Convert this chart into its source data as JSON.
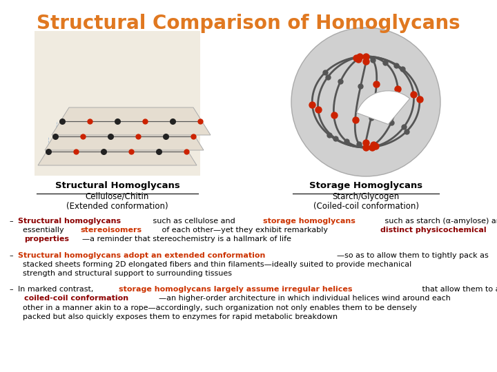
{
  "title": "Structural Comparison of Homoglycans",
  "title_color": "#E07820",
  "title_fontsize": 20,
  "left_label_bold": "Structural Homoglycans",
  "left_label_line1": "Cellulose/Chitin",
  "left_label_line2": "(Extended conformation)",
  "right_label_bold": "Storage Homoglycans",
  "right_label_line1": "Starch/Glycogen",
  "right_label_line2": "(Coiled-coil conformation)",
  "label_color": "#000000",
  "bullet1_lines": [
    [
      {
        "text": "Structural homoglycans",
        "color": "#8B0000",
        "bold": true
      },
      {
        "text": " such as cellulose and ",
        "color": "#000000",
        "bold": false
      },
      {
        "text": "storage homoglycans",
        "color": "#CC3300",
        "bold": true
      },
      {
        "text": " such as starch (α-amylose) are",
        "color": "#000000",
        "bold": false
      }
    ],
    [
      {
        "text": "  essentially ",
        "color": "#000000",
        "bold": false
      },
      {
        "text": "stereoisomers",
        "color": "#CC3300",
        "bold": true
      },
      {
        "text": " of each other—yet they exhibit remarkably ",
        "color": "#000000",
        "bold": false
      },
      {
        "text": "distinct physicochemical",
        "color": "#8B0000",
        "bold": true
      }
    ],
    [
      {
        "text": "  ",
        "color": "#000000",
        "bold": false
      },
      {
        "text": "properties",
        "color": "#8B0000",
        "bold": true
      },
      {
        "text": "—a reminder that stereochemistry is a hallmark of life",
        "color": "#000000",
        "bold": false
      }
    ]
  ],
  "bullet2_lines": [
    [
      {
        "text": "Structural homoglycans adopt an extended conformation",
        "color": "#CC3300",
        "bold": true
      },
      {
        "text": "—so as to allow them to tightly pack as",
        "color": "#000000",
        "bold": false
      }
    ],
    [
      {
        "text": "  stacked sheets forming 2D elongated fibers and thin filaments—ideally suited to provide mechanical",
        "color": "#000000",
        "bold": false
      }
    ],
    [
      {
        "text": "  strength and structural support to surrounding tissues",
        "color": "#000000",
        "bold": false
      }
    ]
  ],
  "bullet3_lines": [
    [
      {
        "text": "In marked contrast, ",
        "color": "#000000",
        "bold": false
      },
      {
        "text": "storage homoglycans largely assume irregular helices",
        "color": "#CC3300",
        "bold": true
      },
      {
        "text": " that allow them to adopt a",
        "color": "#000000",
        "bold": false
      }
    ],
    [
      {
        "text": "  ",
        "color": "#000000",
        "bold": false
      },
      {
        "text": "coiled-coil conformation",
        "color": "#8B0000",
        "bold": true
      },
      {
        "text": "—an higher-order architecture in which individual helices wind around each",
        "color": "#000000",
        "bold": false
      }
    ],
    [
      {
        "text": "  other in a manner akin to a rope—accordingly, such organization not only enables them to be densely",
        "color": "#000000",
        "bold": false
      }
    ],
    [
      {
        "text": "  packed but also quickly exposes them to enzymes for rapid metabolic breakdown",
        "color": "#000000",
        "bold": false
      }
    ]
  ],
  "bg_color": "#FFFFFF"
}
